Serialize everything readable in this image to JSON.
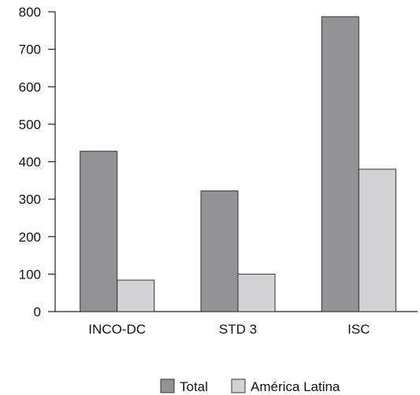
{
  "chart_data": {
    "type": "bar",
    "title": "",
    "xlabel": "",
    "ylabel": "",
    "categories": [
      "INCO-DC",
      "STD 3",
      "ISC"
    ],
    "series": [
      {
        "name": "Total",
        "values": [
          428,
          322,
          787
        ],
        "color": "#939396"
      },
      {
        "name": "América Latina",
        "values": [
          84,
          100,
          380
        ],
        "color": "#d3d3d5"
      }
    ],
    "ylim": [
      0,
      800
    ],
    "yticks": [
      0,
      100,
      200,
      300,
      400,
      500,
      600,
      700,
      800
    ],
    "grid": false,
    "legend_position": "bottom-center"
  }
}
